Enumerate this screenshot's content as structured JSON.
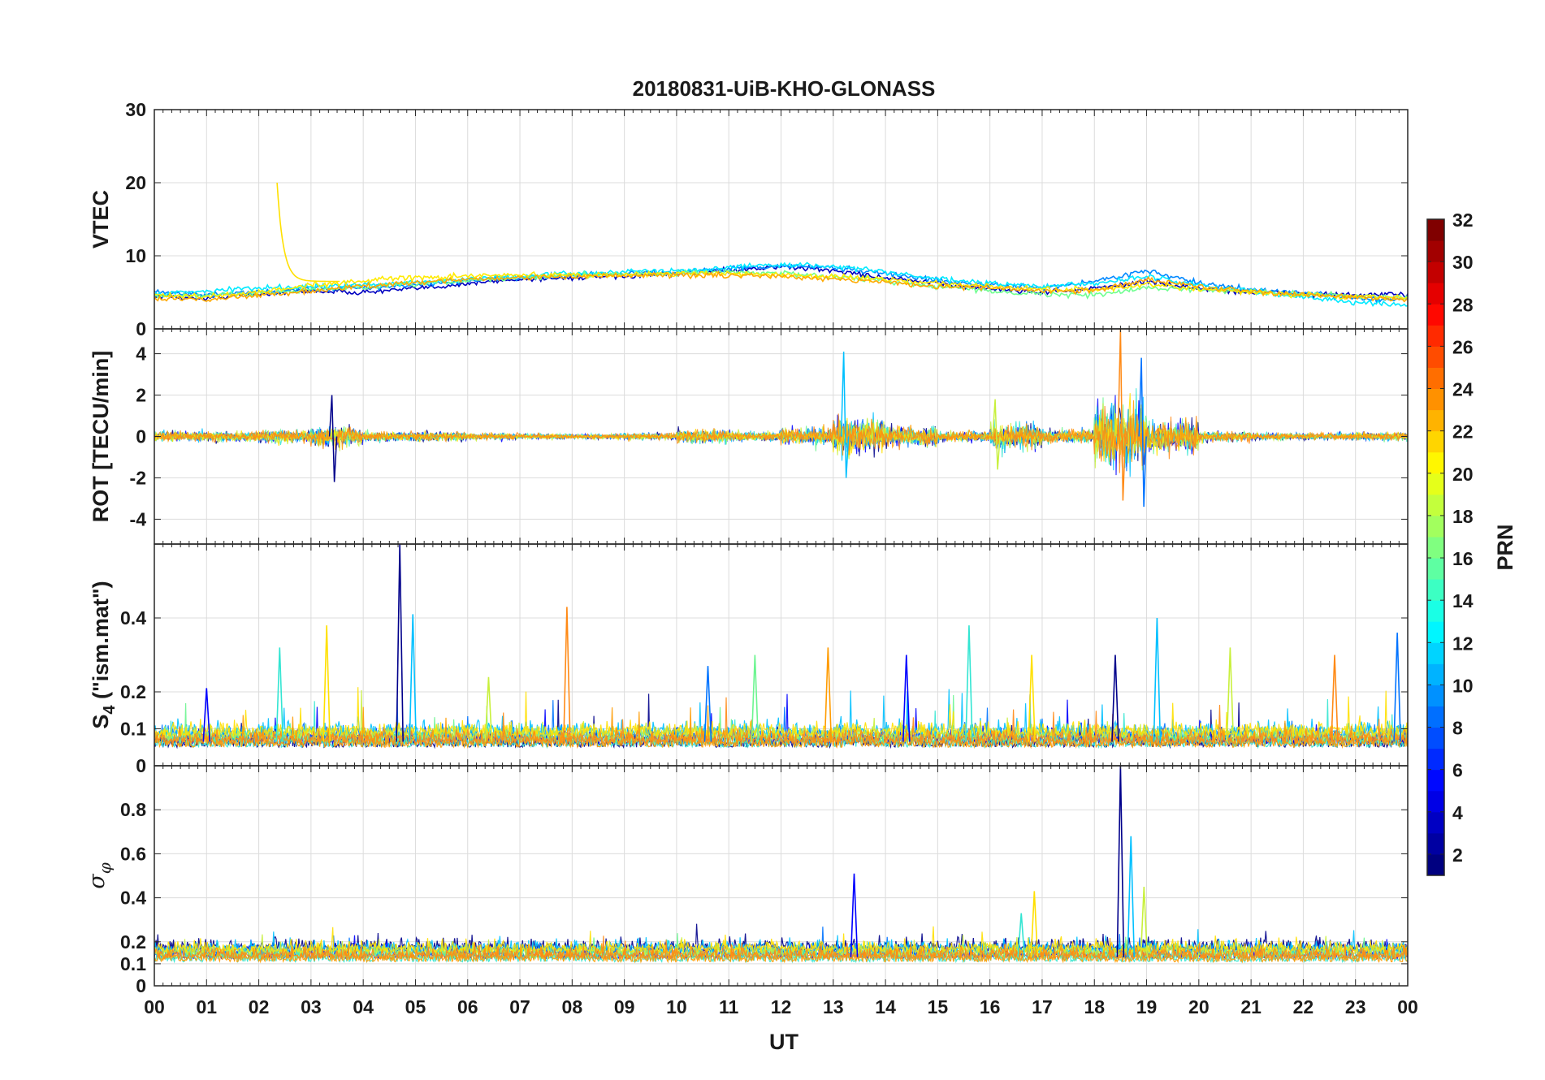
{
  "chart_data": {
    "type": "line",
    "title": "20180831-UiB-KHO-GLONASS",
    "xlabel": "UT",
    "x_ticks": [
      "00",
      "01",
      "02",
      "03",
      "04",
      "05",
      "06",
      "07",
      "08",
      "09",
      "10",
      "11",
      "12",
      "13",
      "14",
      "15",
      "16",
      "17",
      "18",
      "19",
      "20",
      "21",
      "22",
      "23",
      "00"
    ],
    "x_range_hours": [
      0,
      24
    ],
    "grid": true,
    "shared_x_axis": true,
    "panels": [
      {
        "id": "vtec",
        "ylabel": "VTEC",
        "ylim": [
          0,
          30
        ],
        "yticks": [
          0,
          10,
          20,
          30
        ],
        "ytick_labels": [
          "0",
          "10",
          "20",
          "30"
        ],
        "traces": [
          {
            "prn": 3,
            "values": [
              [
                0,
                4.5
              ],
              [
                1,
                4.2
              ],
              [
                2,
                4.8
              ],
              [
                3,
                5.2
              ],
              [
                4,
                5.0
              ],
              [
                5,
                5.5
              ],
              [
                6,
                6.2
              ],
              [
                7,
                6.8
              ],
              [
                8,
                7.0
              ],
              [
                9,
                7.2
              ],
              [
                10,
                7.5
              ],
              [
                11,
                8.0
              ],
              [
                12,
                8.5
              ],
              [
                13,
                8.0
              ],
              [
                14,
                7.0
              ],
              [
                15,
                6.2
              ],
              [
                16,
                5.5
              ],
              [
                17,
                5.0
              ],
              [
                18,
                5.5
              ],
              [
                19,
                6.5
              ],
              [
                20,
                5.5
              ],
              [
                21,
                5.0
              ],
              [
                22,
                4.8
              ],
              [
                23,
                4.6
              ],
              [
                24,
                4.7
              ]
            ]
          },
          {
            "prn": 9,
            "values": [
              [
                0,
                5.2
              ],
              [
                1,
                4.6
              ],
              [
                2,
                5.0
              ],
              [
                3,
                5.5
              ],
              [
                4,
                5.6
              ],
              [
                5,
                6.0
              ],
              [
                6,
                6.5
              ],
              [
                7,
                7.0
              ],
              [
                8,
                7.4
              ],
              [
                9,
                7.6
              ],
              [
                10,
                7.8
              ],
              [
                11,
                8.2
              ],
              [
                12,
                8.6
              ],
              [
                13,
                8.4
              ],
              [
                14,
                7.6
              ],
              [
                15,
                6.6
              ],
              [
                16,
                6.0
              ],
              [
                17,
                5.6
              ],
              [
                18,
                6.5
              ],
              [
                19,
                8.0
              ],
              [
                20,
                6.2
              ],
              [
                21,
                5.4
              ],
              [
                22,
                4.9
              ],
              [
                23,
                4.2
              ],
              [
                24,
                4.0
              ]
            ]
          },
          {
            "prn": 12,
            "values": [
              [
                0,
                4.8
              ],
              [
                1,
                5.2
              ],
              [
                2,
                5.6
              ],
              [
                3,
                5.8
              ],
              [
                4,
                6.0
              ],
              [
                5,
                6.4
              ],
              [
                6,
                6.8
              ],
              [
                7,
                7.2
              ],
              [
                8,
                7.6
              ],
              [
                9,
                7.8
              ],
              [
                10,
                8.0
              ],
              [
                11,
                8.4
              ],
              [
                12,
                8.8
              ],
              [
                13,
                8.6
              ],
              [
                14,
                7.8
              ],
              [
                15,
                6.8
              ],
              [
                16,
                6.2
              ],
              [
                17,
                5.8
              ],
              [
                18,
                6.2
              ],
              [
                19,
                7.2
              ],
              [
                20,
                6.0
              ],
              [
                21,
                5.2
              ],
              [
                22,
                4.4
              ],
              [
                23,
                3.6
              ],
              [
                24,
                3.2
              ]
            ]
          },
          {
            "prn": 16,
            "values": [
              [
                0,
                4.4
              ],
              [
                1,
                4.6
              ],
              [
                2,
                4.9
              ],
              [
                3,
                5.3
              ],
              [
                4,
                5.7
              ],
              [
                5,
                6.1
              ],
              [
                6,
                6.6
              ],
              [
                7,
                7.0
              ],
              [
                8,
                7.3
              ],
              [
                9,
                7.5
              ],
              [
                10,
                7.6
              ],
              [
                11,
                7.8
              ],
              [
                12,
                7.6
              ],
              [
                13,
                7.2
              ],
              [
                14,
                6.6
              ],
              [
                15,
                5.8
              ],
              [
                16,
                5.2
              ],
              [
                17,
                4.8
              ],
              [
                18,
                4.6
              ],
              [
                19,
                5.6
              ],
              [
                20,
                5.4
              ],
              [
                21,
                5.1
              ],
              [
                22,
                4.8
              ],
              [
                23,
                4.5
              ],
              [
                24,
                4.2
              ]
            ]
          },
          {
            "prn": 21,
            "values": [
              [
                0,
                4.6
              ],
              [
                1,
                4.4
              ],
              [
                2,
                5.0
              ],
              [
                3,
                6.0
              ],
              [
                4,
                6.6
              ],
              [
                5,
                7.0
              ],
              [
                6,
                7.2
              ],
              [
                7,
                7.4
              ],
              [
                8,
                7.4
              ],
              [
                9,
                7.4
              ],
              [
                10,
                7.6
              ],
              [
                11,
                7.6
              ],
              [
                12,
                7.4
              ],
              [
                13,
                7.2
              ],
              [
                14,
                6.8
              ],
              [
                15,
                6.2
              ],
              [
                16,
                5.8
              ],
              [
                17,
                5.4
              ],
              [
                18,
                5.4
              ],
              [
                19,
                6.0
              ],
              [
                20,
                5.4
              ],
              [
                21,
                5.0
              ],
              [
                22,
                4.6
              ],
              [
                23,
                4.4
              ],
              [
                24,
                4.2
              ]
            ]
          },
          {
            "prn": 23,
            "values": [
              [
                0,
                4.2
              ],
              [
                1,
                4.0
              ],
              [
                2,
                4.6
              ],
              [
                3,
                5.2
              ],
              [
                4,
                5.8
              ],
              [
                5,
                6.4
              ],
              [
                6,
                6.8
              ],
              [
                7,
                7.0
              ],
              [
                8,
                7.2
              ],
              [
                9,
                7.2
              ],
              [
                10,
                7.4
              ],
              [
                11,
                7.3
              ],
              [
                12,
                7.2
              ],
              [
                13,
                6.9
              ],
              [
                14,
                6.4
              ],
              [
                15,
                5.8
              ],
              [
                16,
                5.6
              ],
              [
                17,
                5.2
              ],
              [
                18,
                5.2
              ],
              [
                19,
                6.8
              ],
              [
                20,
                5.8
              ],
              [
                21,
                5.1
              ],
              [
                22,
                4.7
              ],
              [
                23,
                4.3
              ],
              [
                24,
                4.0
              ]
            ]
          }
        ]
      },
      {
        "id": "rot",
        "ylabel": "ROT [TECU/min]",
        "ylim": [
          -5.2,
          5.2
        ],
        "yticks": [
          -4,
          -2,
          0,
          2,
          4
        ],
        "ytick_labels": [
          "-4",
          "-2",
          "0",
          "2",
          "4"
        ],
        "rms_envelope_by_hour": {
          "0": 0.3,
          "1": 0.3,
          "2": 0.4,
          "3": 0.6,
          "4": 0.3,
          "5": 0.3,
          "6": 0.2,
          "7": 0.15,
          "8": 0.15,
          "9": 0.2,
          "10": 0.4,
          "11": 0.3,
          "12": 0.5,
          "13": 1.2,
          "14": 0.6,
          "15": 0.3,
          "16": 0.8,
          "17": 0.4,
          "18": 2.0,
          "19": 1.0,
          "20": 0.3,
          "21": 0.2,
          "22": 0.2,
          "23": 0.25
        },
        "peaks": [
          [
            3.4,
            2.0,
            -2.2
          ],
          [
            13.2,
            4.1,
            -2.0
          ],
          [
            16.1,
            1.8,
            -1.6
          ],
          [
            18.5,
            5.2,
            -3.1
          ],
          [
            18.9,
            3.8,
            -3.4
          ]
        ]
      },
      {
        "id": "s4",
        "ylabel": "S_4 (\"ism.mat\")",
        "ylabel_main": "S",
        "ylabel_sub": "4",
        "ylabel_rest": " (\"ism.mat\")",
        "ylim": [
          0,
          0.6
        ],
        "yticks": [
          0,
          0.1,
          0.2,
          0.4
        ],
        "ytick_labels": [
          "0",
          "0.1",
          "0.2",
          "0.4"
        ],
        "spikes": [
          [
            1.0,
            0.21
          ],
          [
            2.4,
            0.32
          ],
          [
            3.3,
            0.38
          ],
          [
            4.7,
            0.6
          ],
          [
            4.95,
            0.41
          ],
          [
            6.4,
            0.24
          ],
          [
            7.9,
            0.43
          ],
          [
            10.6,
            0.27
          ],
          [
            11.5,
            0.3
          ],
          [
            12.9,
            0.32
          ],
          [
            14.4,
            0.3
          ],
          [
            15.6,
            0.38
          ],
          [
            16.8,
            0.3
          ],
          [
            18.4,
            0.3
          ],
          [
            19.2,
            0.4
          ],
          [
            20.6,
            0.32
          ],
          [
            22.6,
            0.3
          ],
          [
            23.8,
            0.36
          ]
        ]
      },
      {
        "id": "sigma_phi",
        "ylabel": "σ_φ",
        "ylabel_main": "σ",
        "ylabel_sub": "φ",
        "ylim": [
          0,
          1.0
        ],
        "yticks": [
          0,
          0.1,
          0.2,
          0.4,
          0.6,
          0.8
        ],
        "ytick_labels": [
          "0",
          "0.1",
          "0.2",
          "0.4",
          "0.6",
          "0.8"
        ],
        "spikes": [
          [
            13.4,
            0.51
          ],
          [
            16.6,
            0.33
          ],
          [
            16.85,
            0.43
          ],
          [
            18.5,
            1.0
          ],
          [
            18.7,
            0.68
          ],
          [
            18.95,
            0.45
          ]
        ]
      }
    ],
    "colorbar": {
      "label": "PRN",
      "colormap": "jet",
      "range": [
        1,
        32
      ],
      "ticks": [
        2,
        4,
        6,
        8,
        10,
        12,
        14,
        16,
        18,
        20,
        22,
        24,
        26,
        28,
        30,
        32
      ],
      "tick_labels": [
        "2",
        "4",
        "6",
        "8",
        "10",
        "12",
        "14",
        "16",
        "18",
        "20",
        "22",
        "24",
        "26",
        "28",
        "30",
        "32"
      ]
    },
    "trace_colors": [
      "#00008b",
      "#0000ff",
      "#0073ff",
      "#00c0ff",
      "#33e5d2",
      "#6cf590",
      "#c8f03c",
      "#ffe000",
      "#ff9b00",
      "#ff8a16"
    ]
  }
}
